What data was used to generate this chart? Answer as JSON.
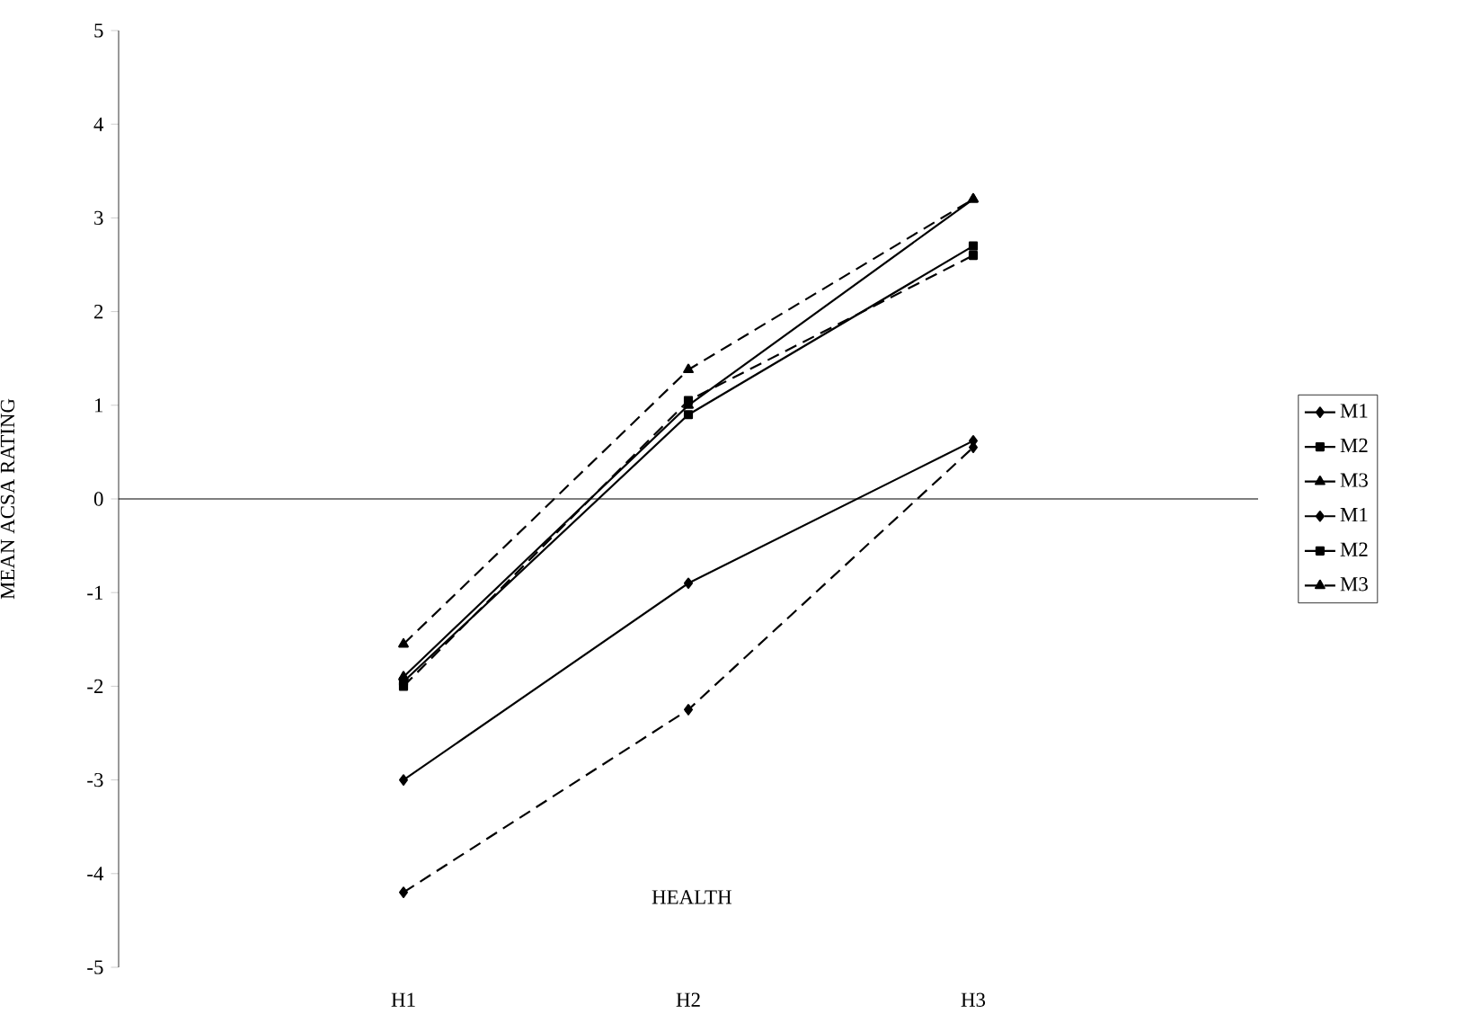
{
  "chart_data": {
    "type": "line",
    "xlabel": "HEALTH",
    "ylabel": "MEAN ACSA RATING",
    "categories": [
      "H1",
      "H2",
      "H3"
    ],
    "series": [
      {
        "name": "M1",
        "color": "#000000",
        "marker": "diamond",
        "line_style": "solid",
        "values": [
          -3.0,
          -0.9,
          0.62
        ]
      },
      {
        "name": "M2",
        "color": "#000000",
        "marker": "square",
        "line_style": "solid",
        "values": [
          -1.95,
          0.9,
          2.7
        ]
      },
      {
        "name": "M3",
        "color": "#000000",
        "marker": "triangle",
        "line_style": "solid",
        "values": [
          -1.9,
          1.0,
          3.2
        ]
      },
      {
        "name": "M1",
        "color": "#000000",
        "marker": "diamond",
        "line_style": "dashed",
        "values": [
          -4.2,
          -2.25,
          0.55
        ]
      },
      {
        "name": "M2",
        "color": "#000000",
        "marker": "square",
        "line_style": "dashed",
        "values": [
          -2.0,
          1.05,
          2.6
        ]
      },
      {
        "name": "M3",
        "color": "#000000",
        "marker": "triangle",
        "line_style": "dashed",
        "values": [
          -1.55,
          1.38,
          3.2
        ]
      }
    ],
    "ylim": [
      -5,
      5
    ],
    "yticks": [
      -5,
      -4,
      -3,
      -2,
      -1,
      0,
      1,
      2,
      3,
      4,
      5
    ],
    "ref_lines": [
      {
        "axis": "y",
        "value": 0,
        "color": "#000000"
      }
    ],
    "legend": "right",
    "grid": false
  }
}
